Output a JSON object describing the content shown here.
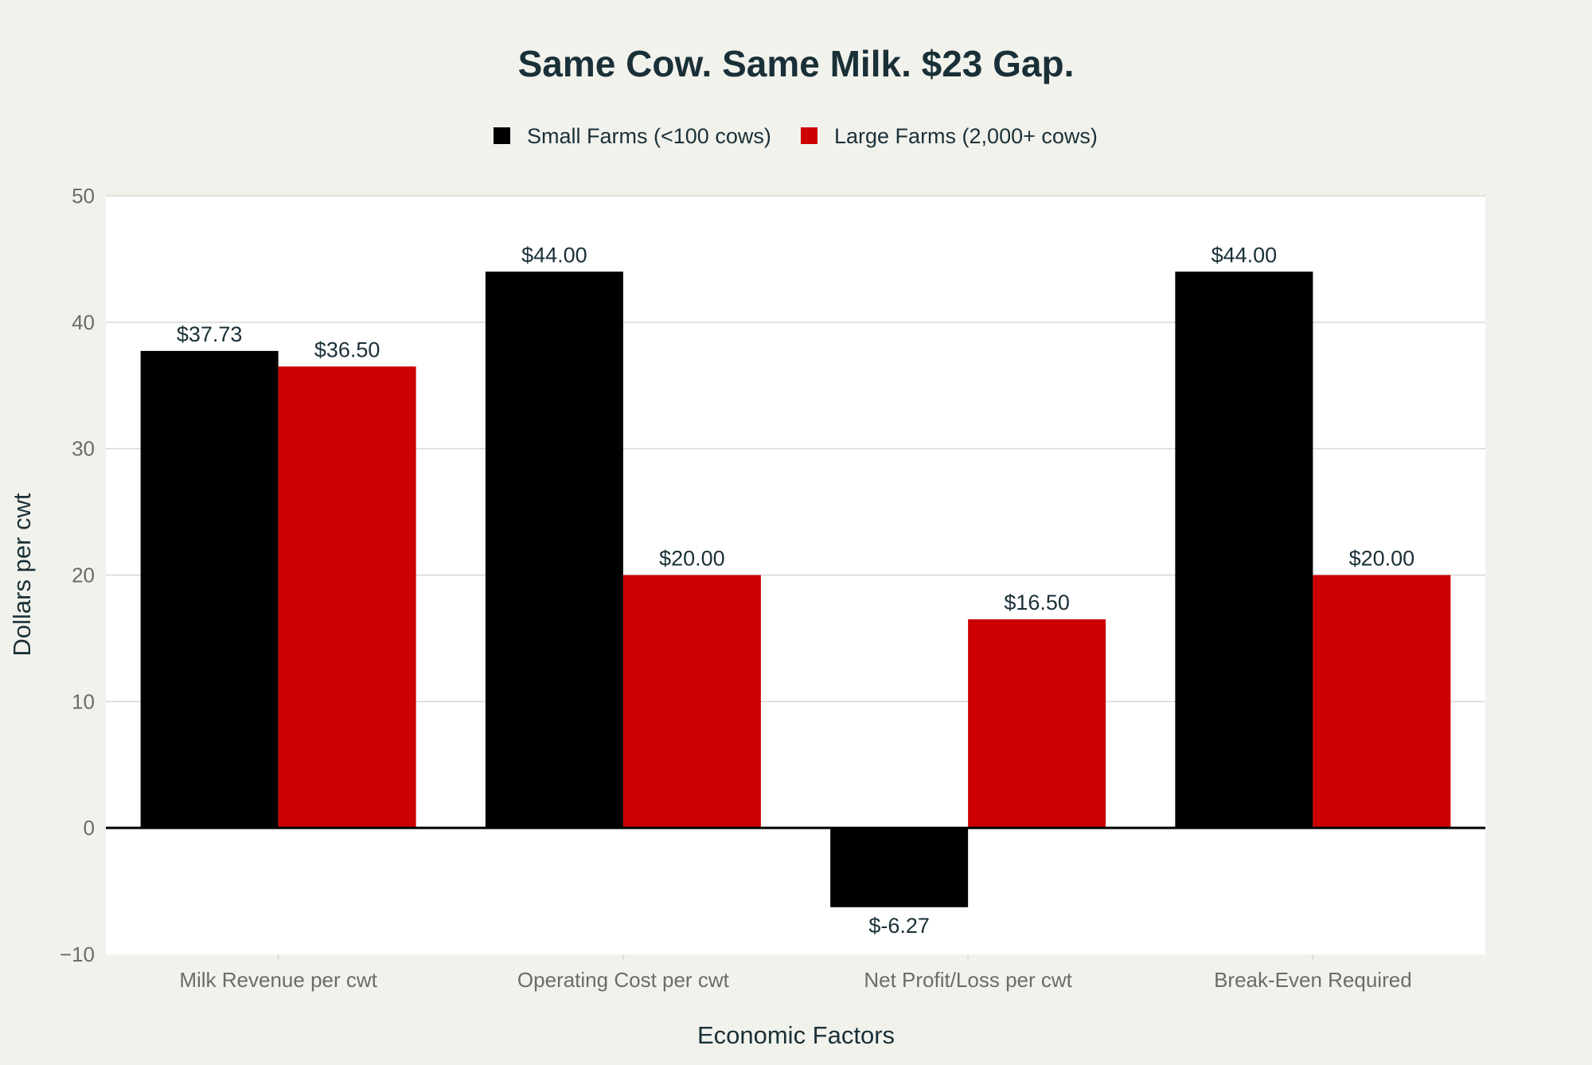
{
  "chart_data": {
    "type": "bar",
    "title": "Same Cow. Same Milk. $23 Gap.",
    "xlabel": "Economic Factors",
    "ylabel": "Dollars per cwt",
    "categories": [
      "Milk Revenue per cwt",
      "Operating Cost per cwt",
      "Net Profit/Loss per cwt",
      "Break-Even Required"
    ],
    "series": [
      {
        "name": "Small Farms (<100 cows)",
        "color": "#000000",
        "values": [
          37.73,
          44.0,
          -6.27,
          44.0
        ],
        "labels": [
          "$37.73",
          "$44.00",
          "$-6.27",
          "$44.00"
        ]
      },
      {
        "name": "Large Farms (2,000+ cows)",
        "color": "#cc0000",
        "values": [
          36.5,
          20.0,
          16.5,
          20.0
        ],
        "labels": [
          "$36.50",
          "$20.00",
          "$16.50",
          "$20.00"
        ]
      }
    ],
    "ylim": [
      -10,
      50
    ],
    "yticks": [
      -10,
      0,
      10,
      20,
      30,
      40,
      50
    ],
    "ytick_labels": [
      "−10",
      "0",
      "10",
      "20",
      "30",
      "40",
      "50"
    ],
    "grid": true,
    "legend_position": "top-center"
  }
}
